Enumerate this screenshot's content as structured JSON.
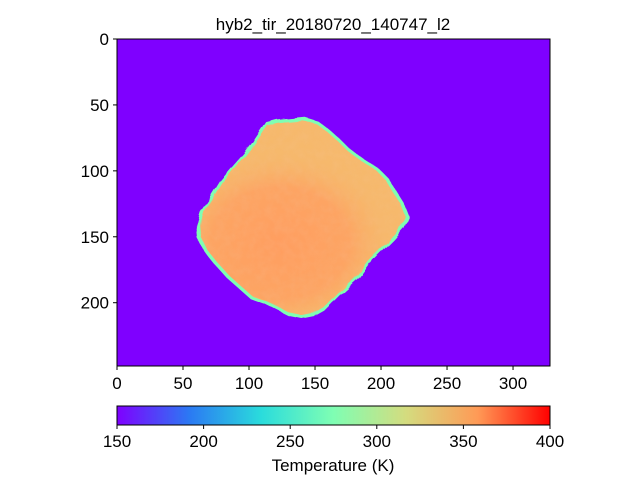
{
  "figure": {
    "title": "hyb2_tir_20180720_140747_l2",
    "background_color": "#7f00ff",
    "x_axis": {
      "range": [
        0,
        328
      ],
      "ticks": [
        {
          "value": 0,
          "label": "0"
        },
        {
          "value": 50,
          "label": "50"
        },
        {
          "value": 100,
          "label": "100"
        },
        {
          "value": 150,
          "label": "150"
        },
        {
          "value": 200,
          "label": "200"
        },
        {
          "value": 250,
          "label": "250"
        },
        {
          "value": 300,
          "label": "300"
        }
      ]
    },
    "y_axis": {
      "range": [
        0,
        248
      ],
      "inverted": true,
      "ticks": [
        {
          "value": 0,
          "label": "0"
        },
        {
          "value": 50,
          "label": "50"
        },
        {
          "value": 100,
          "label": "100"
        },
        {
          "value": 150,
          "label": "150"
        },
        {
          "value": 200,
          "label": "200"
        }
      ]
    },
    "colorbar": {
      "label": "Temperature (K)",
      "range": [
        150,
        400
      ],
      "colormap": "rainbow",
      "colors": [
        "#7f00ff",
        "#2b79f3",
        "#2adcdc",
        "#7ffeb3",
        "#d4dc7f",
        "#ff9a56",
        "#ff0000"
      ],
      "ticks": [
        {
          "value": 150,
          "label": "150"
        },
        {
          "value": 200,
          "label": "200"
        },
        {
          "value": 250,
          "label": "250"
        },
        {
          "value": 300,
          "label": "300"
        },
        {
          "value": 350,
          "label": "350"
        },
        {
          "value": 400,
          "label": "400"
        }
      ]
    },
    "asteroid": {
      "outline_data_coords": [
        [
          60,
          141
        ],
        [
          63,
          131
        ],
        [
          70,
          121
        ],
        [
          78,
          108
        ],
        [
          88,
          96
        ],
        [
          96,
          87
        ],
        [
          103,
          78
        ],
        [
          109,
          69
        ],
        [
          113,
          63
        ],
        [
          121,
          61
        ],
        [
          131,
          60
        ],
        [
          142,
          59
        ],
        [
          152,
          62
        ],
        [
          160,
          68
        ],
        [
          168,
          75
        ],
        [
          176,
          83
        ],
        [
          187,
          91
        ],
        [
          198,
          98
        ],
        [
          206,
          106
        ],
        [
          212,
          116
        ],
        [
          217,
          124
        ],
        [
          221,
          134
        ],
        [
          217,
          143
        ],
        [
          209,
          152
        ],
        [
          200,
          161
        ],
        [
          192,
          169
        ],
        [
          183,
          181
        ],
        [
          172,
          191
        ],
        [
          164,
          199
        ],
        [
          157,
          206
        ],
        [
          150,
          210
        ],
        [
          140,
          212
        ],
        [
          130,
          210
        ],
        [
          122,
          206
        ],
        [
          112,
          201
        ],
        [
          101,
          197
        ],
        [
          92,
          189
        ],
        [
          83,
          181
        ],
        [
          74,
          171
        ],
        [
          66,
          161
        ],
        [
          61,
          151
        ]
      ],
      "rim_color": "#7ffeb3",
      "body_color": "#f6b96c",
      "warm_color": "#ff9e60"
    }
  }
}
